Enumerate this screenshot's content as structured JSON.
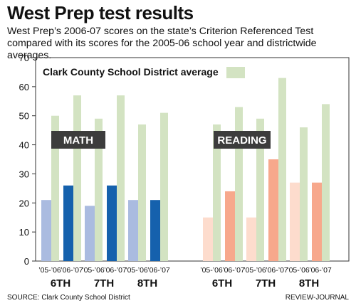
{
  "header": {
    "title": "West Prep test results",
    "subtitle": "West Prep’s 2006-07 scores on the state’s Criterion Referenced Test compared with its scores for the 2005-06 school year and districtwide averages."
  },
  "footer": {
    "source": "SOURCE: Clark County School District",
    "credit": "REVIEW-JOURNAL"
  },
  "colors": {
    "district_avg": "#d3e3c2",
    "math_05_06": "#aabbe0",
    "math_06_07": "#1561ad",
    "reading_05_06": "#fddccd",
    "reading_06_07": "#f7a88c",
    "panel_label_bg": "#3c3c3c"
  },
  "chart_data": {
    "type": "bar",
    "ylim": [
      0,
      70
    ],
    "yticks": [
      0,
      10,
      20,
      30,
      40,
      50,
      60,
      70
    ],
    "grid": false,
    "legend": {
      "position": "top-left",
      "label": "Clark County School District average"
    },
    "panels": [
      {
        "label": "MATH",
        "groups": [
          {
            "grade": "6TH",
            "bars": [
              {
                "year": "’05-’06",
                "school": 21,
                "district": 50
              },
              {
                "year": "’06-’07",
                "school": 26,
                "district": 57
              }
            ]
          },
          {
            "grade": "7TH",
            "bars": [
              {
                "year": "’05-’06",
                "school": 19,
                "district": 49
              },
              {
                "year": "’06-’07",
                "school": 26,
                "district": 57
              }
            ]
          },
          {
            "grade": "8TH",
            "bars": [
              {
                "year": "’05-’06",
                "school": 21,
                "district": 47
              },
              {
                "year": "’06-’07",
                "school": 21,
                "district": 51
              }
            ]
          }
        ]
      },
      {
        "label": "READING",
        "groups": [
          {
            "grade": "6TH",
            "bars": [
              {
                "year": "’05-’06",
                "school": 15,
                "district": 47
              },
              {
                "year": "’06-’07",
                "school": 24,
                "district": 53
              }
            ]
          },
          {
            "grade": "7TH",
            "bars": [
              {
                "year": "’05-’06",
                "school": 15,
                "district": 49
              },
              {
                "year": "’06-’07",
                "school": 35,
                "district": 63
              }
            ]
          },
          {
            "grade": "8TH",
            "bars": [
              {
                "year": "’05-’06",
                "school": 27,
                "district": 46
              },
              {
                "year": "’06-’07",
                "school": 27,
                "district": 54
              }
            ]
          }
        ]
      }
    ]
  }
}
